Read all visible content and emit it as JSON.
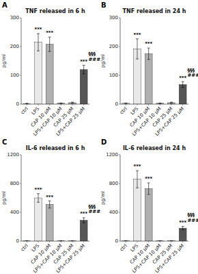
{
  "chart_data": [
    {
      "type": "bar",
      "title": "TNF released in 6 h",
      "ylabel": "pg/ml",
      "ylim": [
        0,
        300
      ],
      "yticks": [
        0,
        100,
        200,
        300
      ],
      "grid": false,
      "categories": [
        "ctrl",
        "LPS",
        "CAP 10 μM",
        "LPS+CAP 10 μM",
        "CAP 25 μM",
        "LPS+CAP 25 μM"
      ],
      "values": [
        2,
        215,
        208,
        3,
        5,
        120
      ],
      "errors": [
        1,
        30,
        25,
        1,
        2,
        15
      ],
      "colors": [
        "#e8e8e8",
        "#e8e8e8",
        "#b0b0b0",
        "#b0b0b0",
        "#b0b0b0",
        "#555555"
      ],
      "annotations": [
        {
          "text": "A",
          "position": "corner"
        },
        {
          "text": "***",
          "category": "LPS",
          "position": "above"
        },
        {
          "text": "***",
          "category": "CAP 10 μM",
          "position": "above"
        },
        {
          "text": "***",
          "category": "LPS+CAP 25 μM",
          "position": "above"
        },
        {
          "text": "§§§",
          "category": "LPS+CAP 25 μM",
          "position": "upper right"
        },
        {
          "text": "###",
          "category": "LPS+CAP 25 μM",
          "position": "right"
        }
      ]
    },
    {
      "type": "bar",
      "title": "TNF released in 24 h",
      "ylabel": "pg/ml",
      "ylim": [
        0,
        300
      ],
      "yticks": [
        0,
        100,
        200,
        300
      ],
      "grid": false,
      "categories": [
        "ctrl",
        "LPS",
        "CAP 10 μM",
        "LPS+CAP 10 μM",
        "CAP 25 μM",
        "LPS+CAP 25 μM"
      ],
      "values": [
        3,
        192,
        175,
        3,
        5,
        68
      ],
      "errors": [
        1,
        35,
        20,
        1,
        2,
        10
      ],
      "colors": [
        "#e8e8e8",
        "#e8e8e8",
        "#b0b0b0",
        "#b0b0b0",
        "#b0b0b0",
        "#555555"
      ],
      "annotations": [
        {
          "text": "B",
          "position": "corner"
        },
        {
          "text": "***",
          "category": "LPS",
          "position": "above"
        },
        {
          "text": "***",
          "category": "CAP 10 μM",
          "position": "above"
        },
        {
          "text": "***",
          "category": "LPS+CAP 25 μM",
          "position": "above"
        },
        {
          "text": "§§§",
          "category": "LPS+CAP 25 μM",
          "position": "upper right"
        },
        {
          "text": "###",
          "category": "LPS+CAP 25 μM",
          "position": "right"
        }
      ]
    },
    {
      "type": "bar",
      "title": "IL-6 released in 6 h",
      "ylabel": "pg/ml",
      "ylim": [
        0,
        1200
      ],
      "yticks": [
        0,
        400,
        800,
        1200
      ],
      "grid": false,
      "categories": [
        "ctrl",
        "LPS",
        "CAP 10 μM",
        "LPS+CAP 10 μM",
        "CAP 25 μM",
        "LPS+CAP 25 μM"
      ],
      "values": [
        5,
        600,
        510,
        5,
        5,
        290
      ],
      "errors": [
        2,
        60,
        50,
        2,
        2,
        35
      ],
      "colors": [
        "#e8e8e8",
        "#e8e8e8",
        "#b0b0b0",
        "#b0b0b0",
        "#b0b0b0",
        "#555555"
      ],
      "annotations": [
        {
          "text": "C",
          "position": "corner"
        },
        {
          "text": "***",
          "category": "LPS",
          "position": "above"
        },
        {
          "text": "***",
          "category": "CAP 10 μM",
          "position": "above"
        },
        {
          "text": "***",
          "category": "LPS+CAP 25 μM",
          "position": "above"
        },
        {
          "text": "§§§",
          "category": "LPS+CAP 25 μM",
          "position": "upper right"
        },
        {
          "text": "###",
          "category": "LPS+CAP 25 μM",
          "position": "right"
        }
      ]
    },
    {
      "type": "bar",
      "title": "IL-6 released in 24 h",
      "ylabel": "pg/ml",
      "ylim": [
        0,
        1200
      ],
      "yticks": [
        0,
        400,
        800,
        1200
      ],
      "grid": false,
      "categories": [
        "ctrl",
        "LPS",
        "CAP 10 μM",
        "LPS+CAP 10 μM",
        "CAP 25 μM",
        "LPS+CAP 25 μM"
      ],
      "values": [
        5,
        860,
        730,
        5,
        5,
        180
      ],
      "errors": [
        2,
        120,
        80,
        2,
        2,
        25
      ],
      "colors": [
        "#e8e8e8",
        "#e8e8e8",
        "#b0b0b0",
        "#b0b0b0",
        "#b0b0b0",
        "#555555"
      ],
      "annotations": [
        {
          "text": "D",
          "position": "corner"
        },
        {
          "text": "***",
          "category": "LPS",
          "position": "above"
        },
        {
          "text": "***",
          "category": "CAP 10 μM",
          "position": "above"
        },
        {
          "text": "***",
          "category": "LPS+CAP 25 μM",
          "position": "above"
        },
        {
          "text": "§§§",
          "category": "LPS+CAP 25 μM",
          "position": "upper right"
        },
        {
          "text": "###",
          "category": "LPS+CAP 25 μM",
          "position": "right"
        }
      ]
    }
  ]
}
